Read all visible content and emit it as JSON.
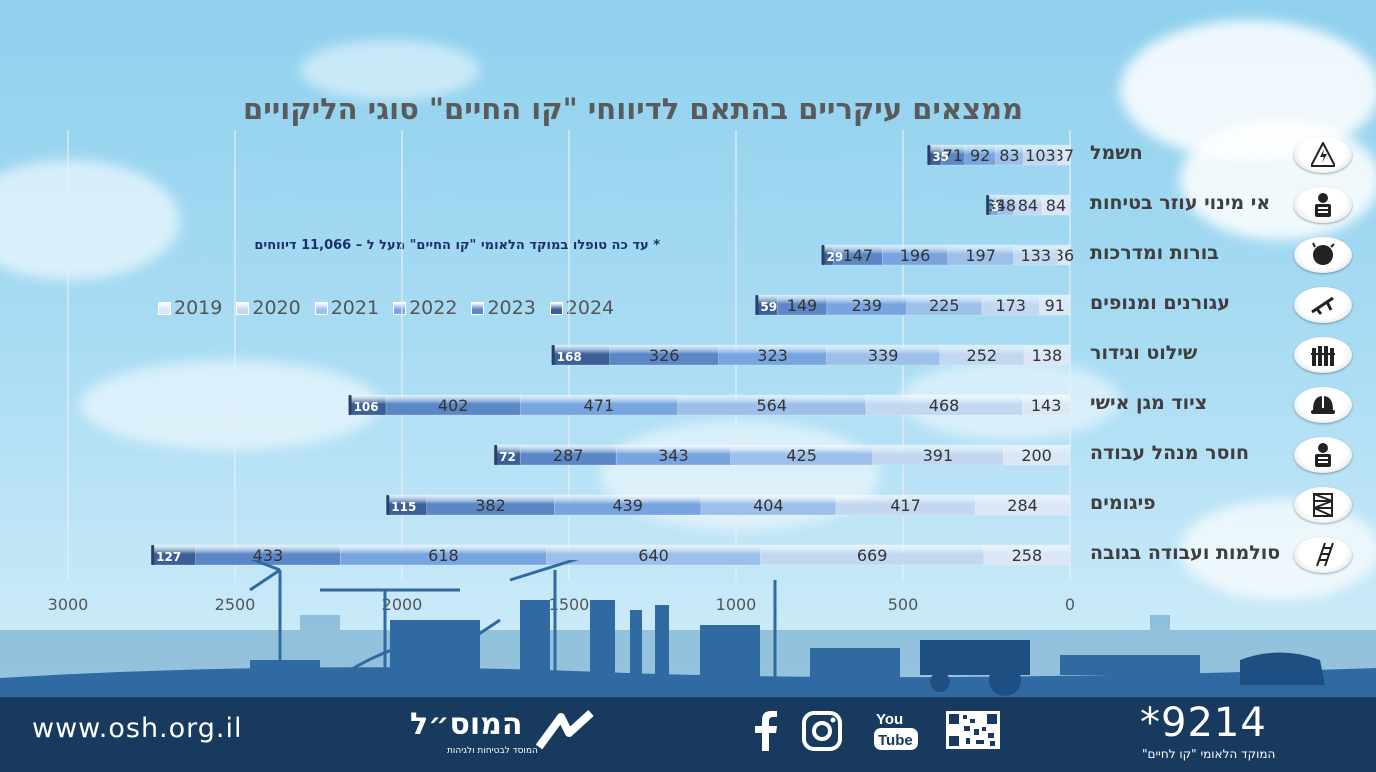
{
  "chart_data": {
    "type": "bar",
    "orientation": "horizontal-stacked",
    "title": "ממצאים עיקריים בהתאם לדיווחי \"קו החיים\" סוגי הליקויים",
    "note": "* עד כה טופלו במוקד הלאומי \"קו החיים\"  מעל ל – 11,066 דיווחים",
    "categories": [
      "חשמל",
      "אי מינוי עוזר בטיחות",
      "בורות ומדרכות",
      "עגורנים ומנופים",
      "שילוט וגידור",
      "ציוד מגן אישי",
      "חוסר מנהל עבודה",
      "פיגומים",
      "סולמות ועבודה בגובה"
    ],
    "series": [
      {
        "name": "2019",
        "values": [
          37,
          84,
          36,
          91,
          138,
          143,
          200,
          284,
          258
        ],
        "color": "#dbe6f6"
      },
      {
        "name": "2020",
        "values": [
          103,
          84,
          133,
          173,
          252,
          468,
          391,
          417,
          669
        ],
        "color": "#c3d7f1"
      },
      {
        "name": "2021",
        "values": [
          83,
          48,
          197,
          225,
          339,
          564,
          425,
          404,
          640
        ],
        "color": "#9dc0ea"
      },
      {
        "name": "2022",
        "values": [
          92,
          18,
          196,
          239,
          323,
          471,
          343,
          439,
          618
        ],
        "color": "#78a5df"
      },
      {
        "name": "2023",
        "values": [
          71,
          8,
          147,
          149,
          326,
          402,
          287,
          382,
          433
        ],
        "color": "#5b87c6"
      },
      {
        "name": "2024",
        "values": [
          35,
          3,
          29,
          59,
          168,
          106,
          72,
          115,
          127
        ],
        "color": "#3c5f97"
      }
    ],
    "x_ticks": [
      "0",
      "500",
      "1000",
      "1500",
      "2000",
      "2500",
      "3000"
    ],
    "xlim": [
      0,
      3000
    ],
    "axis_reversed": true,
    "grid": true,
    "legend_position": "top-left"
  },
  "icons": [
    "electricity-warning-icon",
    "safety-assistant-icon",
    "pit-hole-icon",
    "crane-icon",
    "fence-icon",
    "helmet-icon",
    "work-manager-icon",
    "scaffold-icon",
    "ladder-icon"
  ],
  "footer": {
    "url": "www.osh.org.il",
    "logo_text": "המוס״ל",
    "logo_subtitle": "המוסד לבטיחות ולגיהות",
    "hotline": "*9214",
    "hotline_subtitle": "המוקד הלאומי \"קו לחיים\"",
    "social": [
      "facebook-icon",
      "instagram-icon",
      "youtube-icon",
      "qr-code-icon"
    ],
    "youtube_text": "You Tube"
  }
}
